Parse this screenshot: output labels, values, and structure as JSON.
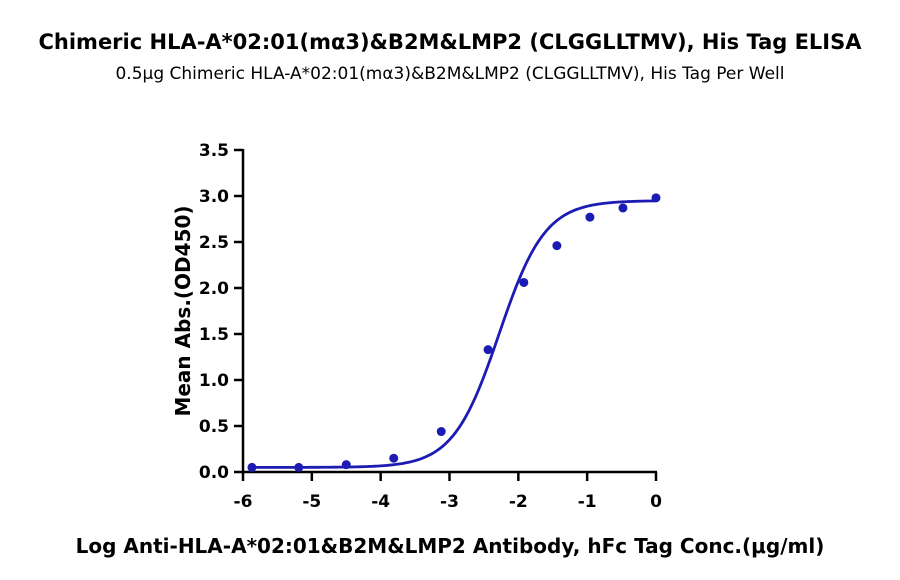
{
  "chart_data": {
    "type": "scatter",
    "title": "Chimeric HLA-A*02:01(mα3)&B2M&LMP2 (CLGGLLTMV), His Tag ELISA",
    "subtitle": "0.5μg Chimeric HLA-A*02:01(mα3)&B2M&LMP2 (CLGGLLTMV), His Tag Per Well",
    "xlabel": "Log Anti-HLA-A*02:01&B2M&LMP2 Antibody, hFc Tag Conc.(μg/ml)",
    "ylabel": "Mean Abs.(OD450)",
    "xlim": [
      -6,
      0
    ],
    "ylim": [
      0,
      3.5
    ],
    "x_ticks": [
      "-6",
      "-5",
      "-4",
      "-3",
      "-2",
      "-1",
      "0"
    ],
    "y_ticks": [
      "0.0",
      "0.5",
      "1.0",
      "1.5",
      "2.0",
      "2.5",
      "3.0",
      "3.5"
    ],
    "grid": false,
    "legend": "none",
    "series": [
      {
        "color": "#1c1cb4",
        "points": [
          {
            "x": -5.87,
            "y": 0.05
          },
          {
            "x": -5.19,
            "y": 0.05
          },
          {
            "x": -4.5,
            "y": 0.08
          },
          {
            "x": -3.81,
            "y": 0.15
          },
          {
            "x": -3.12,
            "y": 0.44
          },
          {
            "x": -2.44,
            "y": 1.33
          },
          {
            "x": -1.92,
            "y": 2.06
          },
          {
            "x": -1.44,
            "y": 2.46
          },
          {
            "x": -0.96,
            "y": 2.77
          },
          {
            "x": -0.48,
            "y": 2.87
          },
          {
            "x": 0.0,
            "y": 2.98
          }
        ],
        "fit": {
          "model": "4PL",
          "bottom": 0.05,
          "top": 2.95,
          "logEC50": -2.28,
          "hill": 1.3
        }
      }
    ]
  }
}
